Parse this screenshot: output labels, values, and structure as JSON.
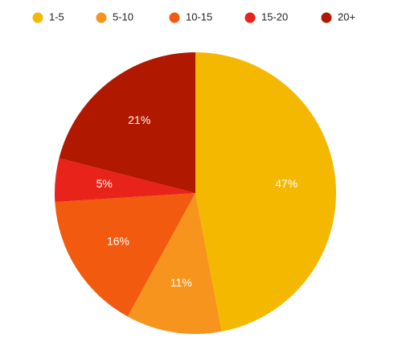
{
  "chart_data": {
    "type": "pie",
    "categories": [
      "1-5",
      "5-10",
      "10-15",
      "15-20",
      "20+"
    ],
    "values": [
      47,
      11,
      16,
      5,
      21
    ],
    "value_labels": [
      "47%",
      "11%",
      "16%",
      "5%",
      "21%"
    ],
    "colors": [
      "#f5b800",
      "#f7941d",
      "#f15a0f",
      "#e8231a",
      "#b01800"
    ],
    "legend": "top"
  }
}
